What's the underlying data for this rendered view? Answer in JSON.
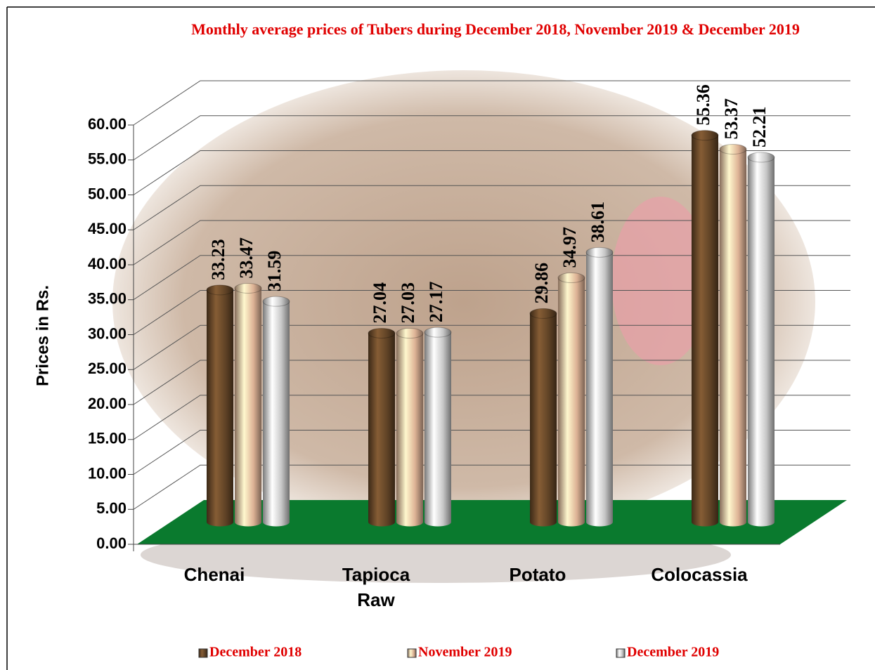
{
  "chart_data": {
    "type": "bar3d",
    "title": "Monthly average  prices of Tubers during  December  2018, November  2019 &  December  2019",
    "y_label": "Prices in Rs.",
    "categories": [
      "Chenai",
      "Tapioca Raw",
      "Potato",
      "Colocassia"
    ],
    "series": [
      {
        "name": "December 2018",
        "color": "#6b4a2a",
        "values": [
          33.23,
          27.04,
          29.86,
          55.36
        ]
      },
      {
        "name": "November 2019",
        "color": "#f5c6a5",
        "values": [
          33.47,
          27.03,
          34.97,
          53.37
        ]
      },
      {
        "name": "December 2019",
        "color": "#dcdcdc",
        "values": [
          31.59,
          27.17,
          38.61,
          52.21
        ]
      }
    ],
    "ylim": [
      0,
      60
    ],
    "yticks": [
      {
        "value": 0,
        "label": "0.00"
      },
      {
        "value": 5,
        "label": "5.00"
      },
      {
        "value": 10,
        "label": "10.00"
      },
      {
        "value": 15,
        "label": "15.00"
      },
      {
        "value": 20,
        "label": "20.00"
      },
      {
        "value": 25,
        "label": "25.00"
      },
      {
        "value": 30,
        "label": "30.00"
      },
      {
        "value": 35,
        "label": "35.00"
      },
      {
        "value": 40,
        "label": "40.00"
      },
      {
        "value": 45,
        "label": "45.00"
      },
      {
        "value": 50,
        "label": "50.00"
      },
      {
        "value": 55,
        "label": "55.00"
      },
      {
        "value": 60,
        "label": "60.00"
      }
    ],
    "floor_color": "#0a7a2e",
    "grid": true
  }
}
